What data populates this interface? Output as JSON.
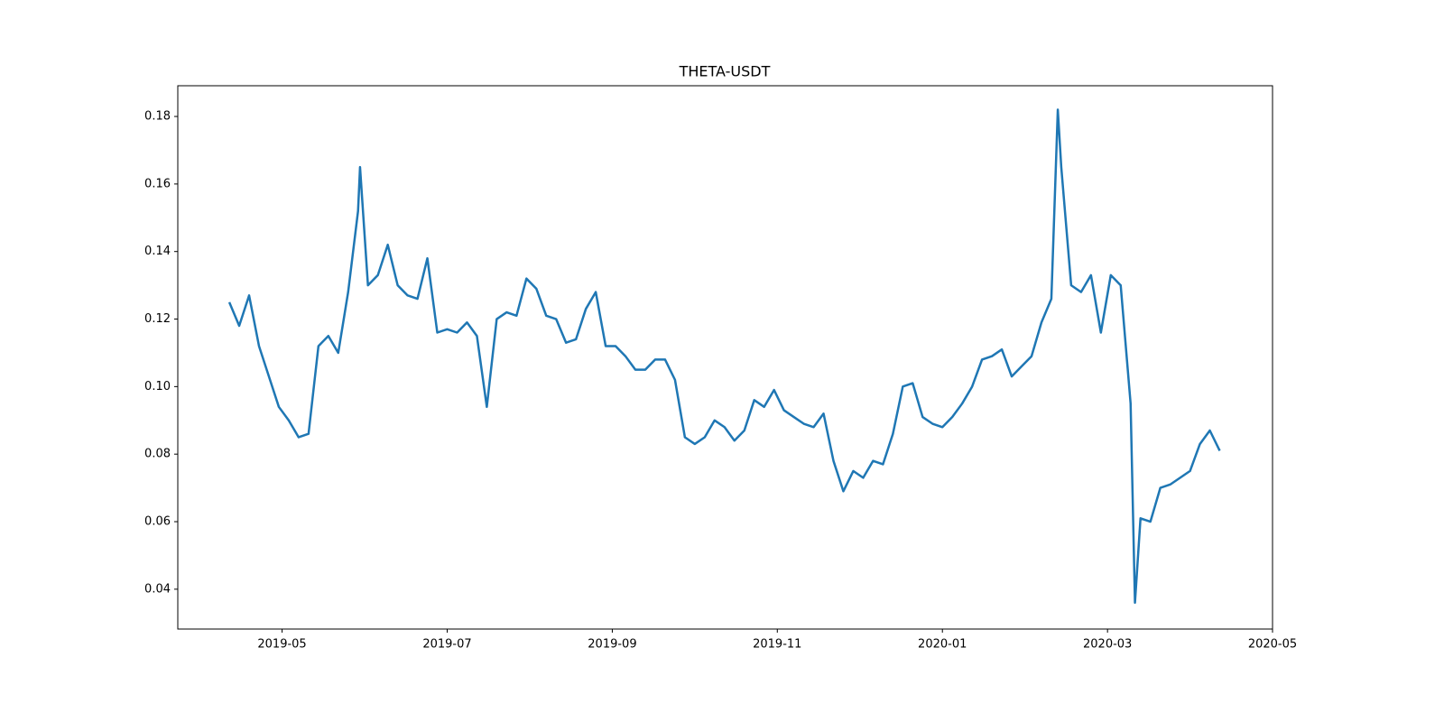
{
  "chart_data": {
    "type": "line",
    "title": "THETA-USDT",
    "x": [
      2019.28,
      2019.29,
      2019.3,
      2019.31,
      2019.32,
      2019.33,
      2019.34,
      2019.35,
      2019.36,
      2019.37,
      2019.38,
      2019.39,
      2019.4,
      2019.41,
      2019.412,
      2019.42,
      2019.43,
      2019.44,
      2019.45,
      2019.46,
      2019.47,
      2019.48,
      2019.49,
      2019.5,
      2019.51,
      2019.52,
      2019.53,
      2019.54,
      2019.55,
      2019.56,
      2019.57,
      2019.58,
      2019.59,
      2019.6,
      2019.61,
      2019.62,
      2019.63,
      2019.64,
      2019.65,
      2019.66,
      2019.67,
      2019.68,
      2019.69,
      2019.7,
      2019.71,
      2019.72,
      2019.73,
      2019.74,
      2019.75,
      2019.76,
      2019.77,
      2019.78,
      2019.79,
      2019.8,
      2019.81,
      2019.82,
      2019.83,
      2019.84,
      2019.85,
      2019.86,
      2019.87,
      2019.88,
      2019.89,
      2019.9,
      2019.91,
      2019.92,
      2019.93,
      2019.94,
      2019.95,
      2019.96,
      2019.97,
      2019.98,
      2019.99,
      2020.0,
      2020.01,
      2020.02,
      2020.03,
      2020.04,
      2020.05,
      2020.06,
      2020.07,
      2020.08,
      2020.09,
      2020.1,
      2020.11,
      2020.1165,
      2020.12,
      2020.13,
      2020.14,
      2020.15,
      2020.16,
      2020.17,
      2020.18,
      2020.19,
      2020.1944,
      2020.2,
      2020.21,
      2020.22,
      2020.23,
      2020.24,
      2020.25,
      2020.26,
      2020.27,
      2020.28
    ],
    "series": [
      {
        "color": "#1f77b4",
        "values": [
          0.125,
          0.118,
          0.127,
          0.112,
          0.103,
          0.094,
          0.09,
          0.085,
          0.086,
          0.112,
          0.115,
          0.11,
          0.128,
          0.152,
          0.165,
          0.13,
          0.133,
          0.142,
          0.13,
          0.127,
          0.126,
          0.138,
          0.116,
          0.117,
          0.116,
          0.119,
          0.115,
          0.094,
          0.12,
          0.122,
          0.121,
          0.132,
          0.129,
          0.121,
          0.12,
          0.113,
          0.114,
          0.123,
          0.128,
          0.112,
          0.112,
          0.109,
          0.105,
          0.105,
          0.108,
          0.108,
          0.102,
          0.085,
          0.083,
          0.085,
          0.09,
          0.088,
          0.084,
          0.087,
          0.096,
          0.094,
          0.099,
          0.093,
          0.091,
          0.089,
          0.088,
          0.092,
          0.078,
          0.069,
          0.075,
          0.073,
          0.078,
          0.077,
          0.086,
          0.1,
          0.101,
          0.091,
          0.089,
          0.088,
          0.091,
          0.095,
          0.1,
          0.108,
          0.109,
          0.111,
          0.103,
          0.106,
          0.109,
          0.119,
          0.126,
          0.182,
          0.165,
          0.13,
          0.128,
          0.133,
          0.116,
          0.133,
          0.13,
          0.095,
          0.036,
          0.061,
          0.06,
          0.07,
          0.071,
          0.073,
          0.075,
          0.083,
          0.087,
          0.081
        ]
      }
    ],
    "xlim": [
      2019.228,
      2020.3333
    ],
    "xticks": [
      {
        "value": 2019.3333,
        "label": "2019-05"
      },
      {
        "value": 2019.5,
        "label": "2019-07"
      },
      {
        "value": 2019.6667,
        "label": "2019-09"
      },
      {
        "value": 2019.8333,
        "label": "2019-11"
      },
      {
        "value": 2020.0,
        "label": "2020-01"
      },
      {
        "value": 2020.1667,
        "label": "2020-03"
      },
      {
        "value": 2020.3333,
        "label": "2020-05"
      }
    ],
    "ylim": [
      0.0282,
      0.1891
    ],
    "yticks": [
      0.04,
      0.06,
      0.08,
      {
        "value": 0.1,
        "label": "0.10"
      },
      0.12,
      0.14,
      0.16,
      0.18
    ],
    "grid": false
  }
}
